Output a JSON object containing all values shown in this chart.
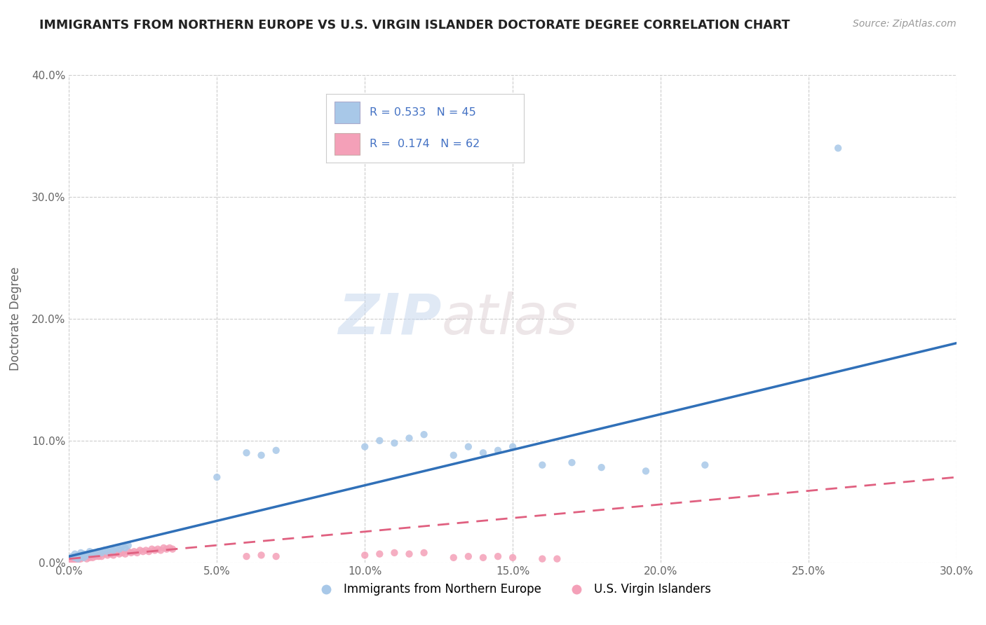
{
  "title": "IMMIGRANTS FROM NORTHERN EUROPE VS U.S. VIRGIN ISLANDER DOCTORATE DEGREE CORRELATION CHART",
  "source": "Source: ZipAtlas.com",
  "ylabel": "Doctorate Degree",
  "xlim": [
    0.0,
    0.3
  ],
  "ylim": [
    0.0,
    0.4
  ],
  "xticks": [
    0.0,
    0.05,
    0.1,
    0.15,
    0.2,
    0.25,
    0.3
  ],
  "yticks": [
    0.0,
    0.1,
    0.2,
    0.3,
    0.4
  ],
  "xtick_labels": [
    "0.0%",
    "5.0%",
    "10.0%",
    "15.0%",
    "20.0%",
    "25.0%",
    "30.0%"
  ],
  "ytick_labels": [
    "0.0%",
    "10.0%",
    "20.0%",
    "30.0%",
    "40.0%"
  ],
  "blue_color": "#A8C8E8",
  "pink_color": "#F4A0B8",
  "blue_line_color": "#3070B8",
  "pink_line_color": "#E06080",
  "R_blue": 0.533,
  "N_blue": 45,
  "R_pink": 0.174,
  "N_pink": 62,
  "legend_label_blue": "Immigrants from Northern Europe",
  "legend_label_pink": "U.S. Virgin Islanders",
  "watermark_zip": "ZIP",
  "watermark_atlas": "atlas",
  "background_color": "#ffffff",
  "blue_scatter_x": [
    0.001,
    0.002,
    0.002,
    0.003,
    0.003,
    0.004,
    0.004,
    0.005,
    0.005,
    0.006,
    0.007,
    0.007,
    0.008,
    0.009,
    0.01,
    0.011,
    0.012,
    0.013,
    0.014,
    0.015,
    0.016,
    0.017,
    0.018,
    0.019,
    0.02,
    0.05,
    0.06,
    0.065,
    0.07,
    0.1,
    0.105,
    0.11,
    0.115,
    0.12,
    0.13,
    0.135,
    0.14,
    0.145,
    0.15,
    0.16,
    0.17,
    0.18,
    0.195,
    0.215,
    0.26
  ],
  "blue_scatter_y": [
    0.005,
    0.004,
    0.007,
    0.003,
    0.006,
    0.005,
    0.008,
    0.004,
    0.007,
    0.006,
    0.007,
    0.009,
    0.008,
    0.007,
    0.009,
    0.008,
    0.01,
    0.009,
    0.011,
    0.01,
    0.012,
    0.011,
    0.013,
    0.012,
    0.014,
    0.07,
    0.09,
    0.088,
    0.092,
    0.095,
    0.1,
    0.098,
    0.102,
    0.105,
    0.088,
    0.095,
    0.09,
    0.092,
    0.095,
    0.08,
    0.082,
    0.078,
    0.075,
    0.08,
    0.34
  ],
  "pink_scatter_x": [
    0.001,
    0.001,
    0.001,
    0.002,
    0.002,
    0.002,
    0.003,
    0.003,
    0.003,
    0.004,
    0.004,
    0.005,
    0.005,
    0.006,
    0.006,
    0.007,
    0.007,
    0.008,
    0.008,
    0.009,
    0.01,
    0.01,
    0.011,
    0.012,
    0.013,
    0.014,
    0.015,
    0.016,
    0.017,
    0.018,
    0.019,
    0.02,
    0.021,
    0.022,
    0.023,
    0.024,
    0.025,
    0.026,
    0.027,
    0.028,
    0.029,
    0.03,
    0.031,
    0.032,
    0.033,
    0.034,
    0.035,
    0.06,
    0.065,
    0.07,
    0.1,
    0.105,
    0.11,
    0.115,
    0.12,
    0.13,
    0.135,
    0.14,
    0.145,
    0.15,
    0.16,
    0.165
  ],
  "pink_scatter_y": [
    0.002,
    0.003,
    0.001,
    0.004,
    0.002,
    0.003,
    0.003,
    0.005,
    0.002,
    0.004,
    0.003,
    0.004,
    0.005,
    0.003,
    0.006,
    0.004,
    0.005,
    0.004,
    0.006,
    0.005,
    0.005,
    0.006,
    0.005,
    0.007,
    0.006,
    0.007,
    0.006,
    0.008,
    0.007,
    0.008,
    0.007,
    0.009,
    0.008,
    0.009,
    0.008,
    0.01,
    0.009,
    0.01,
    0.009,
    0.011,
    0.01,
    0.011,
    0.01,
    0.012,
    0.011,
    0.012,
    0.011,
    0.005,
    0.006,
    0.005,
    0.006,
    0.007,
    0.008,
    0.007,
    0.008,
    0.004,
    0.005,
    0.004,
    0.005,
    0.004,
    0.003,
    0.003
  ],
  "blue_trend_x": [
    0.0,
    0.3
  ],
  "blue_trend_y_start": 0.005,
  "blue_trend_y_end": 0.18,
  "pink_trend_x": [
    0.0,
    0.3
  ],
  "pink_trend_y_start": 0.003,
  "pink_trend_y_end": 0.07
}
